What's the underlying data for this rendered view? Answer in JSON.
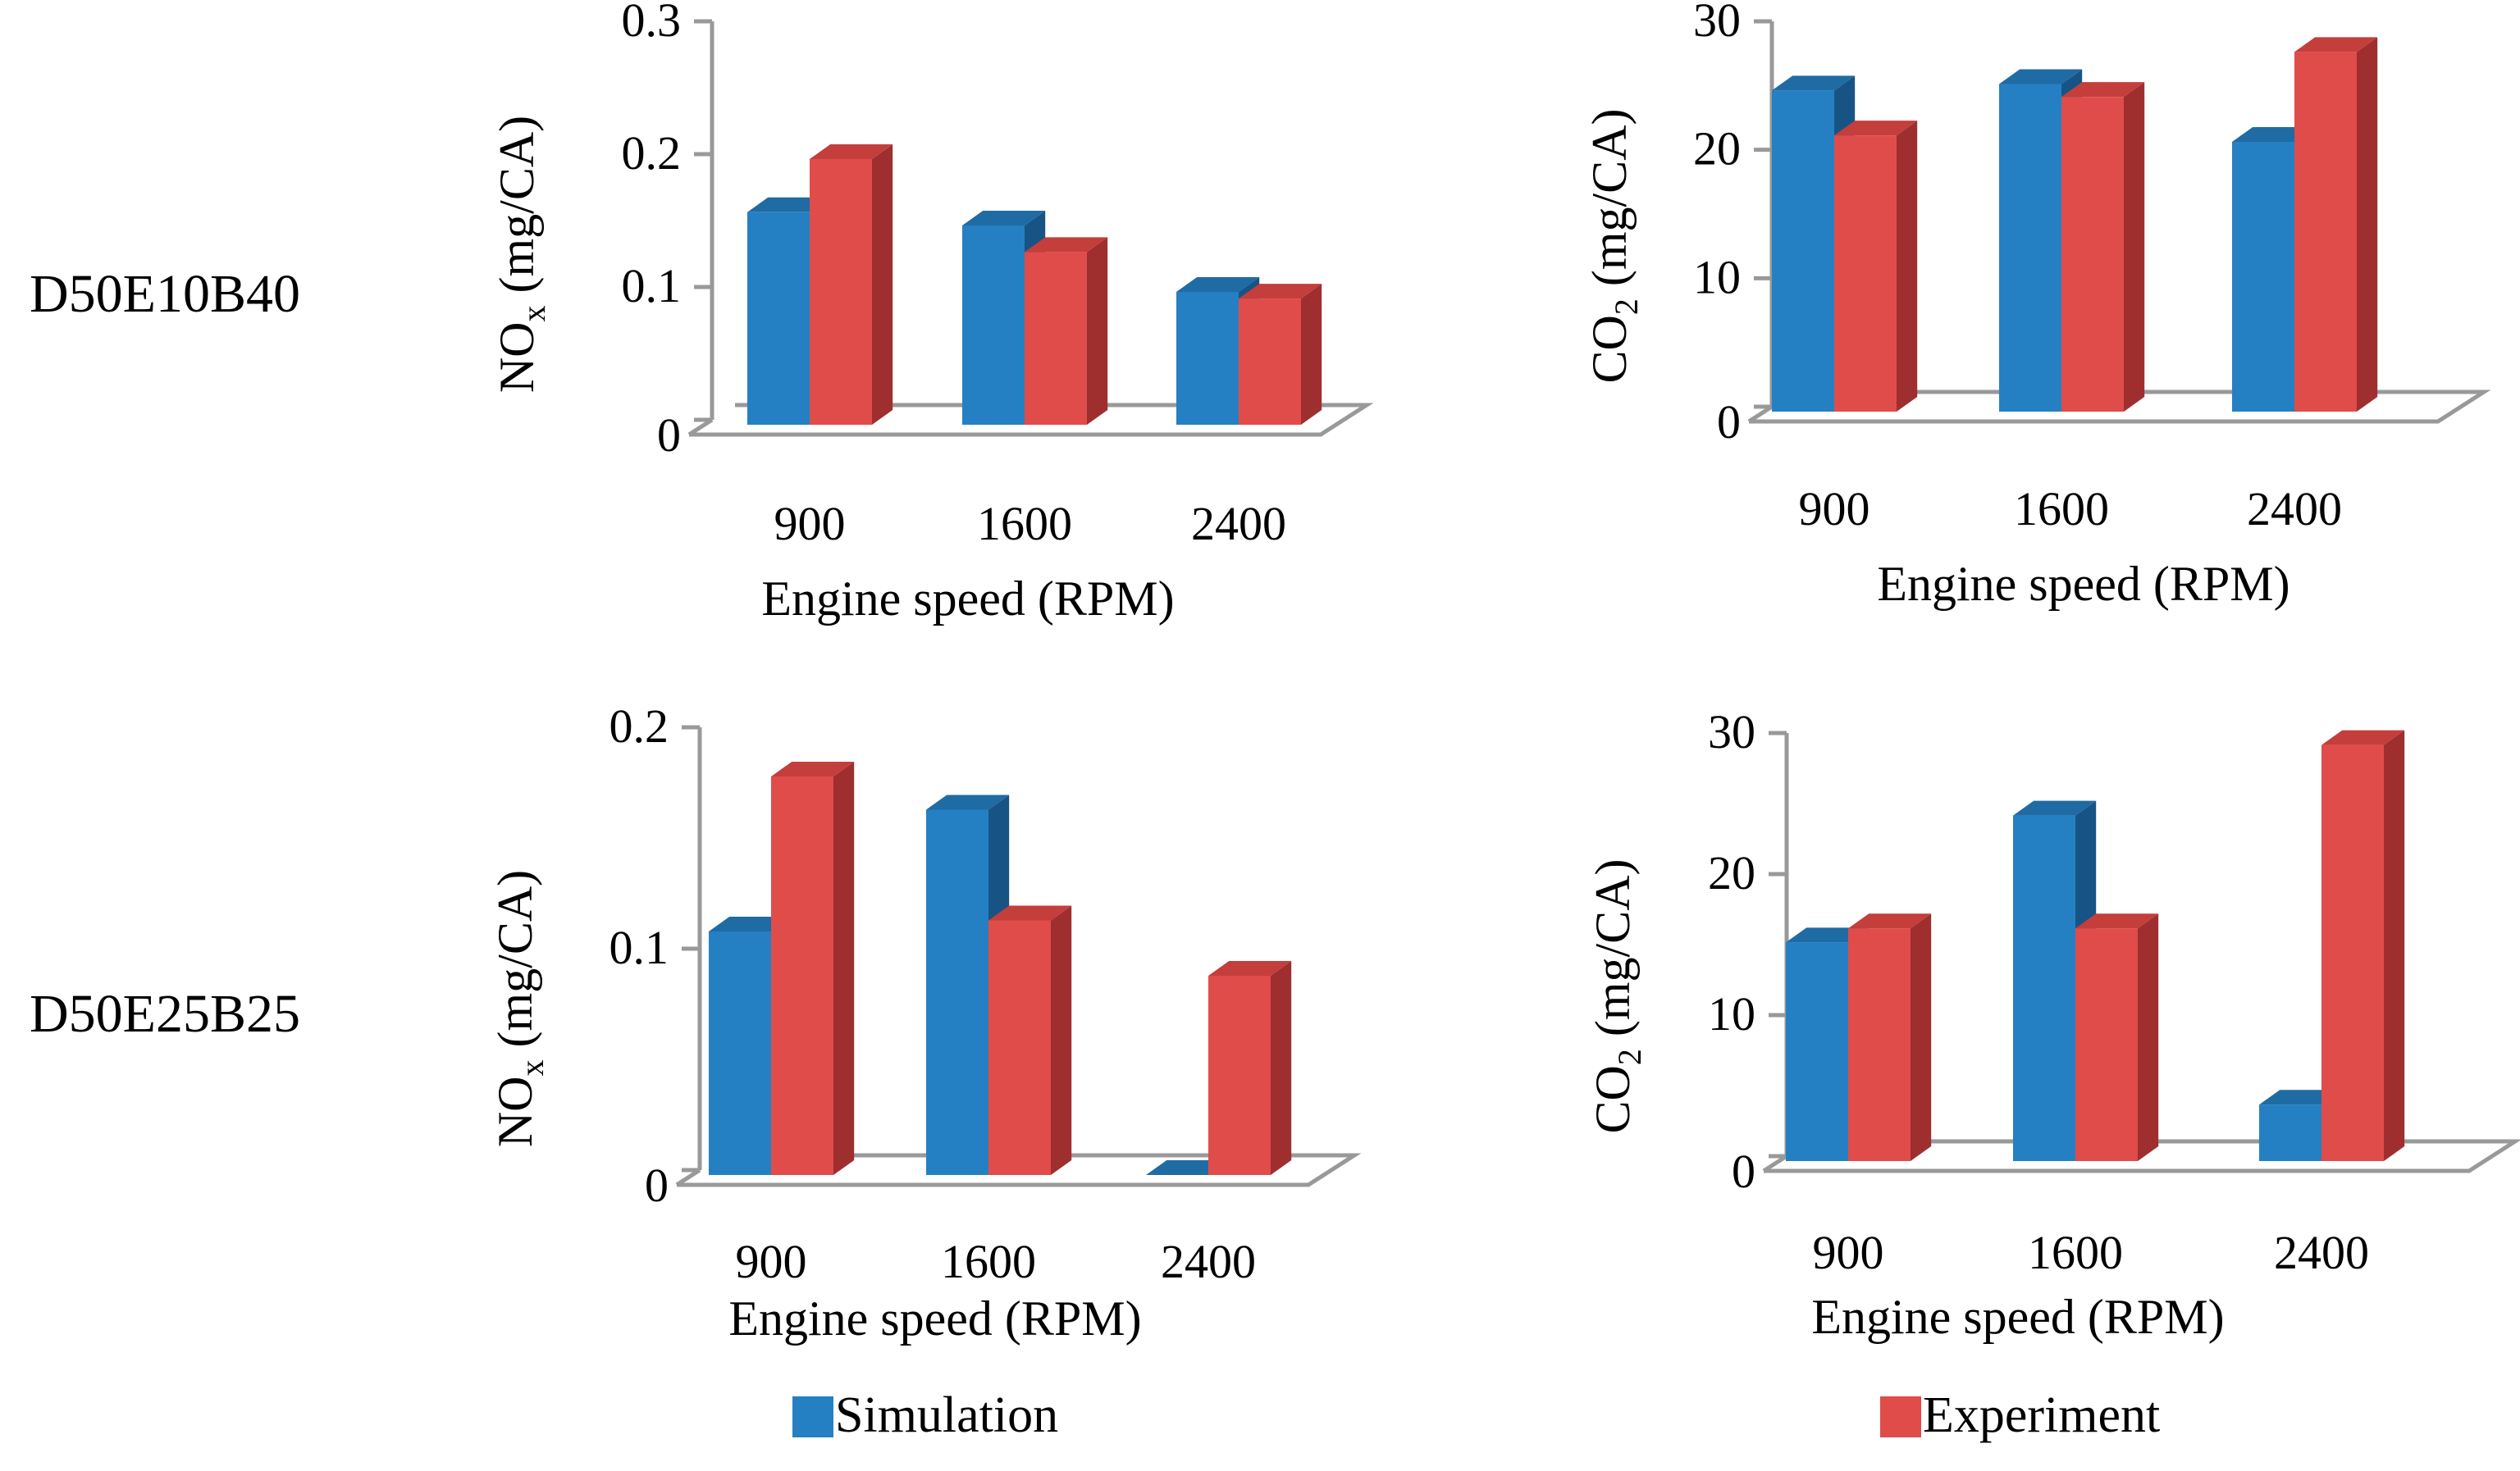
{
  "colors": {
    "simulation": "#2580C3",
    "simulation_top": "#1F6BA4",
    "simulation_side": "#175485",
    "experiment": "#E04C4A",
    "experiment_top": "#C43E3C",
    "experiment_side": "#9E2F2E"
  },
  "rows": [
    {
      "label": "D50E10B40"
    },
    {
      "label": "D50E25B25"
    }
  ],
  "legend": {
    "simulation": "Simulation",
    "experiment": "Experiment"
  },
  "chart_data": [
    {
      "type": "bar",
      "row": "D50E10B40",
      "categories": [
        "900",
        "1600",
        "2400"
      ],
      "series": [
        {
          "name": "Simulation",
          "values": [
            0.16,
            0.15,
            0.1
          ]
        },
        {
          "name": "Experiment",
          "values": [
            0.2,
            0.13,
            0.095
          ]
        }
      ],
      "ylim": [
        0,
        0.3
      ],
      "yticks": [
        "0",
        "0.1",
        "0.2",
        "0.3"
      ],
      "ylabel": {
        "base": "NO",
        "sub": "x",
        "rest": " (mg/CA)"
      },
      "xlabel": "Engine speed (RPM)"
    },
    {
      "type": "bar",
      "row": "D50E10B40",
      "categories": [
        "900",
        "1600",
        "2400"
      ],
      "series": [
        {
          "name": "Simulation",
          "values": [
            25,
            25.5,
            21
          ]
        },
        {
          "name": "Experiment",
          "values": [
            21.5,
            24.5,
            28
          ]
        }
      ],
      "ylim": [
        0,
        30
      ],
      "yticks": [
        "0",
        "10",
        "20",
        "30"
      ],
      "ylabel": {
        "base": "CO",
        "sub": "2",
        "rest": " (mg/CA)"
      },
      "xlabel": "Engine speed (RPM)"
    },
    {
      "type": "bar",
      "row": "D50E25B25",
      "categories": [
        "900",
        "1600",
        "2400"
      ],
      "series": [
        {
          "name": "Simulation",
          "values": [
            0.11,
            0.165,
            0.0
          ]
        },
        {
          "name": "Experiment",
          "values": [
            0.18,
            0.115,
            0.09
          ]
        }
      ],
      "ylim": [
        0,
        0.2
      ],
      "yticks": [
        "0",
        "0.1",
        "0.2"
      ],
      "ylabel": {
        "base": "NO",
        "sub": "x",
        "rest": " (mg/CA)"
      },
      "xlabel": "Engine speed (RPM)"
    },
    {
      "type": "bar",
      "row": "D50E25B25",
      "categories": [
        "900",
        "1600",
        "2400"
      ],
      "series": [
        {
          "name": "Simulation",
          "values": [
            15.5,
            24.5,
            4
          ]
        },
        {
          "name": "Experiment",
          "values": [
            16.5,
            16.5,
            29.5
          ]
        }
      ],
      "ylim": [
        0,
        30
      ],
      "yticks": [
        "0",
        "10",
        "20",
        "30"
      ],
      "ylabel": {
        "base": "CO",
        "sub": "2",
        "rest": " (mg/CA)"
      },
      "xlabel": "Engine speed (RPM)"
    }
  ]
}
